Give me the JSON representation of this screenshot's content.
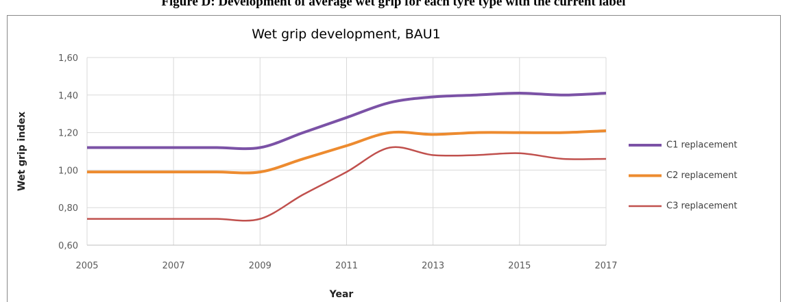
{
  "caption": "Figure D: Development of average wet grip for each tyre type with the current label",
  "chart_data": {
    "type": "line",
    "title": "Wet grip development, BAU1",
    "x_label": "Year",
    "y_label": "Wet grip index",
    "x": [
      2005,
      2006,
      2007,
      2008,
      2009,
      2010,
      2011,
      2012,
      2013,
      2014,
      2015,
      2016,
      2017
    ],
    "series": [
      {
        "name": "C1 replacement",
        "color": "#7b52a6",
        "values": [
          1.12,
          1.12,
          1.12,
          1.12,
          1.12,
          1.2,
          1.28,
          1.36,
          1.39,
          1.4,
          1.41,
          1.4,
          1.41
        ]
      },
      {
        "name": "C2 replacement",
        "color": "#ed8b2f",
        "values": [
          0.99,
          0.99,
          0.99,
          0.99,
          0.99,
          1.06,
          1.13,
          1.2,
          1.19,
          1.2,
          1.2,
          1.2,
          1.21
        ]
      },
      {
        "name": "C3 replacement",
        "color": "#c0504d",
        "values": [
          0.74,
          0.74,
          0.74,
          0.74,
          0.74,
          0.87,
          0.99,
          1.12,
          1.08,
          1.08,
          1.09,
          1.06,
          1.06
        ]
      }
    ],
    "xlim": [
      2005,
      2017
    ],
    "xticks": [
      2005,
      2007,
      2009,
      2011,
      2013,
      2015,
      2017
    ],
    "ylim": [
      0.6,
      1.6
    ],
    "yticks": [
      {
        "value": 0.6,
        "label": "0,60"
      },
      {
        "value": 0.8,
        "label": "0,80"
      },
      {
        "value": 1.0,
        "label": "1,00"
      },
      {
        "value": 1.2,
        "label": "1,20"
      },
      {
        "value": 1.4,
        "label": "1,40"
      },
      {
        "value": 1.6,
        "label": "1,60"
      }
    ],
    "grid": true,
    "legend": "right"
  }
}
